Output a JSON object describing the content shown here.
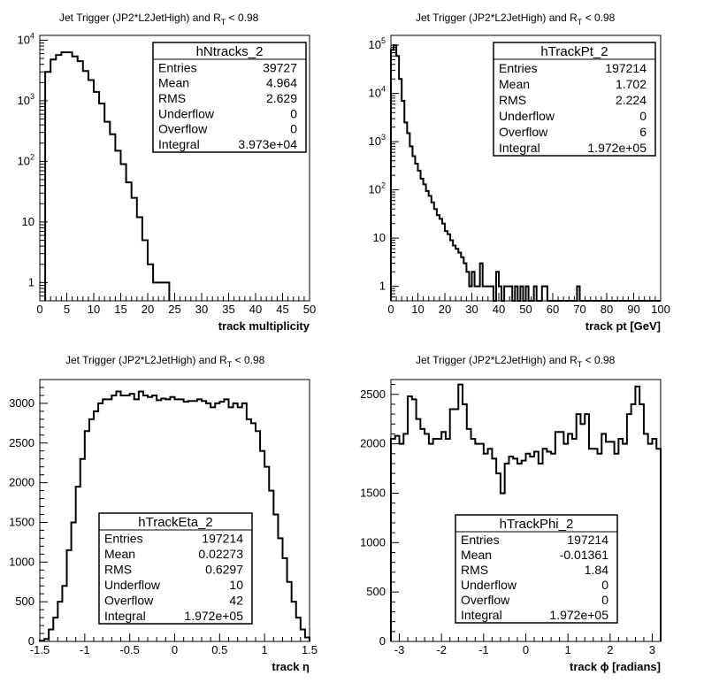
{
  "page": {
    "panels": [
      {
        "title": "Jet Trigger (JP2*L2JetHigh) and R",
        "title_sub": "T",
        "title_cut": " < 0.98"
      },
      {
        "title": "Jet Trigger (JP2*L2JetHigh) and R",
        "title_sub": "T",
        "title_cut": " < 0.98"
      },
      {
        "title": "Jet Trigger (JP2*L2JetHigh) and R",
        "title_sub": "T",
        "title_cut": " < 0.98"
      },
      {
        "title": "Jet Trigger (JP2*L2JetHigh) and R",
        "title_sub": "T",
        "title_cut": " < 0.98"
      }
    ]
  },
  "chart_data": [
    {
      "type": "histogram",
      "name": "hNtracks_2",
      "xlabel": "track multiplicity",
      "ylabel": "",
      "log_y": true,
      "xlim": [
        0,
        50
      ],
      "ylim": [
        0.5,
        12000
      ],
      "x_ticks": [
        0,
        5,
        10,
        15,
        20,
        25,
        30,
        35,
        40,
        45,
        50
      ],
      "y_ticks": [
        "1",
        "10",
        "10^2",
        "10^3",
        "10^4"
      ],
      "bin_edges_x": [
        1,
        2,
        3,
        4,
        5,
        6,
        7,
        8,
        9,
        10,
        11,
        12,
        13,
        14,
        15,
        16,
        17,
        18,
        19,
        20,
        21,
        22,
        23,
        24
      ],
      "values": [
        3000,
        4800,
        5700,
        6300,
        6300,
        5400,
        4500,
        3100,
        2200,
        1400,
        900,
        450,
        280,
        150,
        90,
        45,
        25,
        12,
        5,
        2,
        1,
        1,
        1
      ],
      "stats": [
        {
          "label": "Entries",
          "value": "39727"
        },
        {
          "label": "Mean",
          "value": "4.964"
        },
        {
          "label": "RMS",
          "value": "2.629"
        },
        {
          "label": "Underflow",
          "value": "0"
        },
        {
          "label": "Overflow",
          "value": "0"
        },
        {
          "label": "Integral",
          "value": "3.973e+04"
        }
      ]
    },
    {
      "type": "histogram",
      "name": "hTrackPt_2",
      "xlabel": "track pt [GeV]",
      "ylabel": "",
      "log_y": true,
      "xlim": [
        0,
        100
      ],
      "ylim": [
        0.5,
        160000
      ],
      "x_ticks": [
        0,
        10,
        20,
        30,
        40,
        50,
        60,
        70,
        80,
        90,
        100
      ],
      "y_ticks": [
        "1",
        "10",
        "10^2",
        "10^3",
        "10^4",
        "10^5"
      ],
      "bin_width": 1,
      "values": [
        80000,
        100000,
        60000,
        20000,
        7000,
        2500,
        1500,
        800,
        500,
        350,
        250,
        170,
        130,
        95,
        75,
        55,
        40,
        30,
        25,
        20,
        14,
        12,
        9,
        7,
        6,
        5,
        4,
        3,
        2,
        1,
        2,
        1,
        1,
        3,
        1,
        1,
        1,
        1,
        0,
        2,
        1,
        0,
        1,
        1,
        1,
        0,
        1,
        0,
        1,
        0,
        1,
        0,
        0,
        1,
        0,
        0,
        1,
        1,
        0,
        0,
        0,
        0,
        0,
        0,
        0,
        0,
        0,
        0,
        0,
        1,
        0,
        0,
        0,
        0,
        0,
        0,
        0,
        0,
        0,
        0,
        0,
        0,
        0,
        0,
        0,
        0,
        0,
        0,
        0,
        0,
        0,
        0,
        0,
        0,
        0,
        0,
        0,
        0,
        0,
        0
      ],
      "stats": [
        {
          "label": "Entries",
          "value": "197214"
        },
        {
          "label": "Mean",
          "value": "1.702"
        },
        {
          "label": "RMS",
          "value": "2.224"
        },
        {
          "label": "Underflow",
          "value": "0"
        },
        {
          "label": "Overflow",
          "value": "6"
        },
        {
          "label": "Integral",
          "value": "1.972e+05"
        }
      ]
    },
    {
      "type": "histogram",
      "name": "hTrackEta_2",
      "xlabel": "track η",
      "ylabel": "",
      "log_y": false,
      "xlim": [
        -1.5,
        1.5
      ],
      "ylim": [
        0,
        3300
      ],
      "x_ticks": [
        -1.5,
        -1,
        -0.5,
        0,
        0.5,
        1,
        1.5
      ],
      "y_ticks": [
        0,
        500,
        1000,
        1500,
        2000,
        2500,
        3000
      ],
      "bin_width": 0.05,
      "values": [
        10,
        30,
        150,
        300,
        500,
        700,
        1150,
        1500,
        1950,
        2300,
        2650,
        2800,
        2900,
        3000,
        3050,
        3050,
        3100,
        3150,
        3100,
        3100,
        3120,
        3050,
        3150,
        3100,
        3080,
        3100,
        3040,
        3060,
        3050,
        3080,
        3050,
        3050,
        3020,
        3030,
        3030,
        3050,
        3030,
        3000,
        2950,
        3000,
        3020,
        3050,
        2950,
        3000,
        2950,
        3000,
        2800,
        2750,
        2650,
        2400,
        2200,
        1900,
        1600,
        1300,
        1050,
        750,
        500,
        300,
        150,
        50
      ],
      "stats": [
        {
          "label": "Entries",
          "value": "197214"
        },
        {
          "label": "Mean",
          "value": "0.02273"
        },
        {
          "label": "RMS",
          "value": "0.6297"
        },
        {
          "label": "Underflow",
          "value": "10"
        },
        {
          "label": "Overflow",
          "value": "42"
        },
        {
          "label": "Integral",
          "value": "1.972e+05"
        }
      ]
    },
    {
      "type": "histogram",
      "name": "hTrackPhi_2",
      "xlabel": "track ϕ [radians]",
      "ylabel": "",
      "log_y": false,
      "xlim": [
        -3.2,
        3.2
      ],
      "ylim": [
        0,
        2650
      ],
      "x_ticks": [
        -3,
        -2,
        -1,
        0,
        1,
        2,
        3
      ],
      "y_ticks": [
        0,
        500,
        1000,
        1500,
        2000,
        2500
      ],
      "bin_width": 0.1,
      "values": [
        2050,
        2080,
        2000,
        2100,
        2480,
        2450,
        2250,
        2150,
        2100,
        2000,
        2050,
        2050,
        2120,
        2050,
        2350,
        2350,
        2600,
        2400,
        2150,
        2050,
        2000,
        2000,
        1900,
        1950,
        1850,
        1700,
        1500,
        1800,
        1870,
        1850,
        1800,
        1830,
        1900,
        1870,
        1920,
        1800,
        1950,
        1920,
        1900,
        2120,
        2120,
        2000,
        2100,
        2050,
        2300,
        2200,
        2300,
        1950,
        1950,
        1900,
        2100,
        2020,
        2020,
        1900,
        2050,
        2000,
        2300,
        2400,
        2580,
        2400,
        2100,
        2000,
        2050,
        1950
      ],
      "stats": [
        {
          "label": "Entries",
          "value": "197214"
        },
        {
          "label": "Mean",
          "value": "-0.01361"
        },
        {
          "label": "RMS",
          "value": "1.84"
        },
        {
          "label": "Underflow",
          "value": "0"
        },
        {
          "label": "Overflow",
          "value": "0"
        },
        {
          "label": "Integral",
          "value": "1.972e+05"
        }
      ]
    }
  ]
}
